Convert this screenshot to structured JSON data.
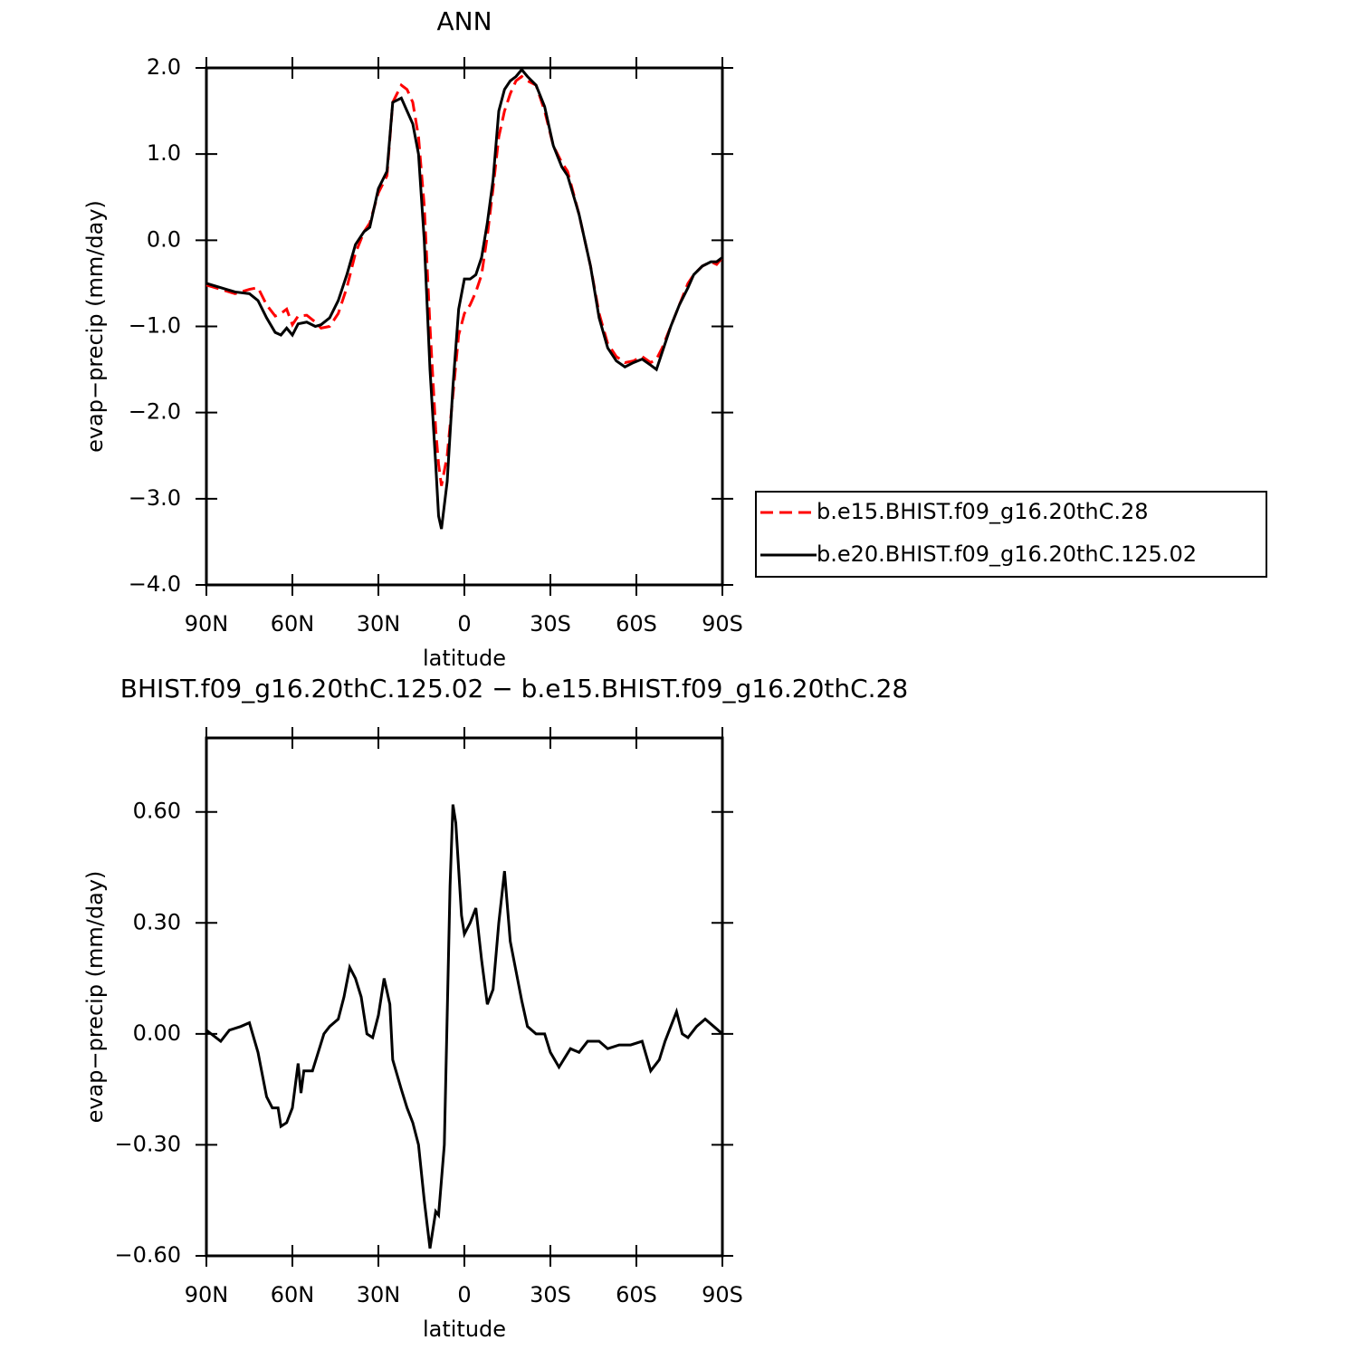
{
  "chart_data": [
    {
      "type": "line",
      "title": "ANN",
      "xlabel": "latitude",
      "ylabel": "evap−precip (mm/day)",
      "x": [
        90,
        85,
        80,
        75,
        72,
        69,
        66,
        64,
        62,
        60,
        58,
        55,
        52,
        50,
        47,
        44,
        41,
        38,
        35,
        33,
        30,
        27,
        25,
        22,
        20,
        18,
        16,
        14,
        12,
        10,
        9,
        8,
        6,
        4,
        2,
        0,
        -2,
        -4,
        -6,
        -8,
        -10,
        -12,
        -14,
        -16,
        -18,
        -20,
        -22,
        -25,
        -28,
        -31,
        -34,
        -36,
        -40,
        -44,
        -47,
        -50,
        -53,
        -56,
        -59,
        -62,
        -65,
        -67,
        -69,
        -72,
        -75,
        -78,
        -80,
        -83,
        -86,
        -88,
        -90
      ],
      "series": [
        {
          "name": "b.e15.BHIST.f09_g16.20thC.28",
          "color": "#ff0000",
          "linestyle": "dashed",
          "values": [
            -0.52,
            -0.57,
            -0.62,
            -0.57,
            -0.55,
            -0.75,
            -0.88,
            -0.85,
            -0.8,
            -0.98,
            -0.88,
            -0.87,
            -0.95,
            -1.02,
            -1.0,
            -0.85,
            -0.55,
            -0.15,
            0.1,
            0.2,
            0.55,
            0.75,
            1.6,
            1.8,
            1.75,
            1.6,
            1.2,
            0.4,
            -1.0,
            -2.2,
            -2.6,
            -2.85,
            -2.5,
            -1.8,
            -1.1,
            -0.85,
            -0.75,
            -0.6,
            -0.4,
            0.05,
            0.6,
            1.2,
            1.5,
            1.7,
            1.85,
            1.9,
            1.85,
            1.8,
            1.5,
            1.1,
            0.9,
            0.8,
            0.3,
            -0.3,
            -0.85,
            -1.2,
            -1.35,
            -1.42,
            -1.4,
            -1.35,
            -1.42,
            -1.38,
            -1.25,
            -1.0,
            -0.75,
            -0.5,
            -0.4,
            -0.3,
            -0.25,
            -0.28,
            -0.2
          ]
        },
        {
          "name": "b.e20.BHIST.f09_g16.20thC.125.02",
          "color": "#000000",
          "linestyle": "solid",
          "values": [
            -0.5,
            -0.55,
            -0.6,
            -0.62,
            -0.7,
            -0.9,
            -1.07,
            -1.1,
            -1.02,
            -1.1,
            -0.97,
            -0.95,
            -1.0,
            -0.98,
            -0.9,
            -0.7,
            -0.4,
            -0.05,
            0.1,
            0.15,
            0.6,
            0.8,
            1.6,
            1.65,
            1.5,
            1.35,
            1.0,
            0.0,
            -1.5,
            -2.6,
            -3.2,
            -3.35,
            -2.8,
            -1.7,
            -0.8,
            -0.45,
            -0.45,
            -0.4,
            -0.2,
            0.2,
            0.7,
            1.5,
            1.75,
            1.85,
            1.9,
            1.98,
            1.9,
            1.8,
            1.55,
            1.1,
            0.85,
            0.75,
            0.3,
            -0.3,
            -0.9,
            -1.25,
            -1.4,
            -1.47,
            -1.42,
            -1.38,
            -1.45,
            -1.5,
            -1.3,
            -1.0,
            -0.75,
            -0.55,
            -0.4,
            -0.3,
            -0.25,
            -0.25,
            -0.2
          ]
        }
      ],
      "xlim": [
        90,
        -90
      ],
      "xticks": [
        {
          "value": 90,
          "label": "90N"
        },
        {
          "value": 60,
          "label": "60N"
        },
        {
          "value": 30,
          "label": "30N"
        },
        0,
        {
          "value": -30,
          "label": "30S"
        },
        {
          "value": -60,
          "label": "60S"
        },
        {
          "value": -90,
          "label": "90S"
        }
      ],
      "ylim": [
        -4,
        2
      ],
      "yticks": [
        {
          "value": -4,
          "label": "−4.0"
        },
        {
          "value": -3,
          "label": "−3.0"
        },
        {
          "value": -2,
          "label": "−2.0"
        },
        {
          "value": -1,
          "label": "−1.0"
        },
        {
          "value": 0,
          "label": "0.0"
        },
        {
          "value": 1,
          "label": "1.0"
        },
        {
          "value": 2,
          "label": "2.0"
        }
      ],
      "legend": "right"
    },
    {
      "type": "line",
      "title": "BHIST.f09_g16.20thC.125.02 − b.e15.BHIST.f09_g16.20thC.28",
      "xlabel": "latitude",
      "ylabel": "evap−precip (mm/day)",
      "x": [
        90,
        85,
        82,
        78,
        75,
        72,
        69,
        67,
        65,
        64,
        62,
        60,
        58,
        57,
        56,
        53,
        51,
        49,
        47,
        44,
        42,
        40,
        38,
        36,
        34,
        32,
        30,
        28,
        26,
        25,
        22,
        20,
        18,
        16,
        14,
        12,
        10,
        9,
        7,
        5,
        4,
        3,
        1,
        0,
        -2,
        -4,
        -6,
        -8,
        -10,
        -12,
        -14,
        -16,
        -18,
        -20,
        -22,
        -25,
        -28,
        -30,
        -33,
        -37,
        -40,
        -43,
        -47,
        -50,
        -54,
        -58,
        -62,
        -65,
        -68,
        -70,
        -72,
        -74,
        -76,
        -78,
        -81,
        -84,
        -87,
        -90
      ],
      "values": [
        0.01,
        -0.02,
        0.01,
        0.02,
        0.03,
        -0.05,
        -0.17,
        -0.2,
        -0.2,
        -0.25,
        -0.24,
        -0.2,
        -0.08,
        -0.16,
        -0.1,
        -0.1,
        -0.05,
        0.0,
        0.02,
        0.04,
        0.1,
        0.18,
        0.15,
        0.1,
        0.0,
        -0.01,
        0.05,
        0.15,
        0.08,
        -0.07,
        -0.15,
        -0.2,
        -0.24,
        -0.3,
        -0.45,
        -0.58,
        -0.48,
        -0.49,
        -0.3,
        0.4,
        0.62,
        0.57,
        0.32,
        0.27,
        0.3,
        0.34,
        0.2,
        0.08,
        0.12,
        0.3,
        0.44,
        0.25,
        0.17,
        0.09,
        0.02,
        0.0,
        0.0,
        -0.05,
        -0.09,
        -0.04,
        -0.05,
        -0.02,
        -0.02,
        -0.04,
        -0.03,
        -0.03,
        -0.02,
        -0.1,
        -0.07,
        -0.02,
        0.02,
        0.06,
        0.0,
        -0.01,
        0.02,
        0.04,
        0.02,
        0.0
      ],
      "color": "#000000",
      "xlim": [
        90,
        -90
      ],
      "xticks": [
        {
          "value": 90,
          "label": "90N"
        },
        {
          "value": 60,
          "label": "60N"
        },
        {
          "value": 30,
          "label": "30N"
        },
        0,
        {
          "value": -30,
          "label": "30S"
        },
        {
          "value": -60,
          "label": "60S"
        },
        {
          "value": -90,
          "label": "90S"
        }
      ],
      "ylim": [
        -0.6,
        0.8
      ],
      "yticks": [
        {
          "value": -0.6,
          "label": "−0.60"
        },
        {
          "value": -0.3,
          "label": "−0.30"
        },
        {
          "value": 0,
          "label": "0.00"
        },
        {
          "value": 0.3,
          "label": "0.30"
        },
        {
          "value": 0.6,
          "label": "0.60"
        }
      ]
    }
  ]
}
